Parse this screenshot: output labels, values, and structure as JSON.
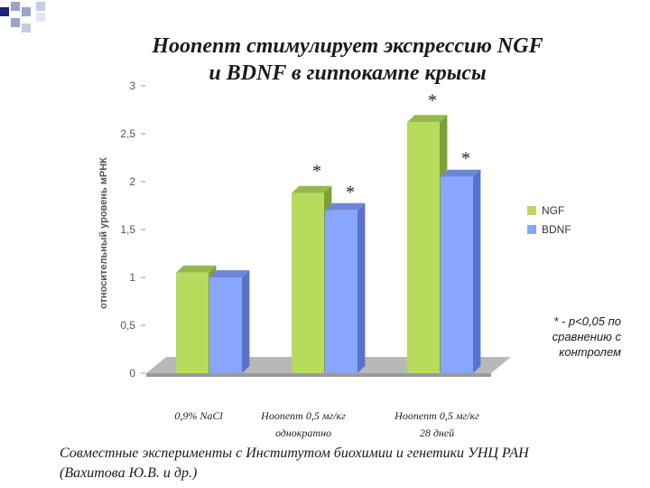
{
  "title": {
    "line1": "Ноопепт стимулирует экспрессию  NGF",
    "line2": "и BDNF в гиппокампе крысы"
  },
  "chart_data": {
    "type": "bar",
    "ylabel": "относительный уровень мРНК",
    "ylim": [
      0,
      3
    ],
    "yticks": [
      "0",
      "0,5",
      "1",
      "1,5",
      "2",
      "2,5",
      "3"
    ],
    "grid": false,
    "legend_position": "right",
    "categories": [
      [
        "0,9% NaCl"
      ],
      [
        "Ноопепт 0,5 мг/кг",
        "однократно"
      ],
      [
        "Ноопепт 0,5 мг/кг",
        "28 дней"
      ]
    ],
    "series": [
      {
        "name": "NGF",
        "values": [
          1.05,
          1.88,
          2.62
        ],
        "significant": [
          false,
          true,
          true
        ]
      },
      {
        "name": "BDNF",
        "values": [
          1.0,
          1.7,
          2.05
        ],
        "significant": [
          false,
          true,
          true
        ]
      }
    ],
    "significance_marker": "*",
    "note": [
      "* - p<0,05 по",
      "сравнению с",
      "контролем"
    ]
  },
  "colors": {
    "ngf_front": "#b5dc5d",
    "ngf_side": "#7f9f34",
    "ngf_top": "#95b94a",
    "bdnf_front": "#89a6ff",
    "bdnf_side": "#5b72cc",
    "bdnf_top": "#6f86d8",
    "floor": "#b8b8b8",
    "deco_dark": "#1a237e",
    "deco_light": "#9aa3c8"
  },
  "footer": {
    "line1": "Совместные эксперименты с  Институтом биохимии и генетики УНЦ РАН",
    "line2": "(Вахитова Ю.В. и др.)"
  }
}
